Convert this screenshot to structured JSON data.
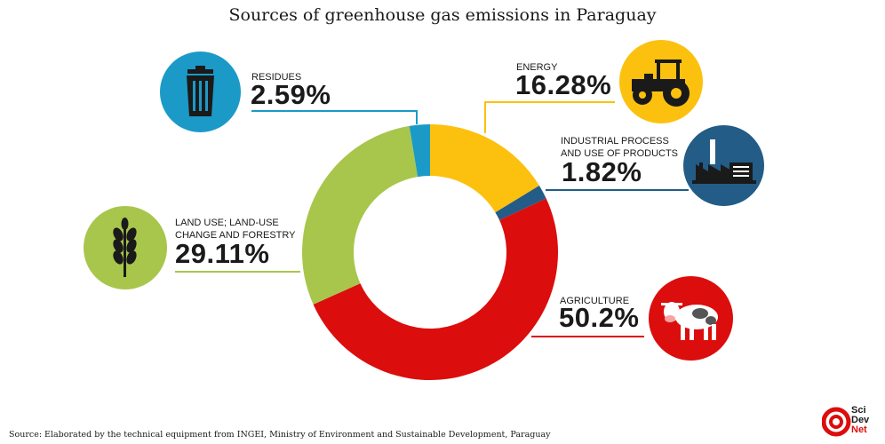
{
  "chart_data": {
    "type": "pie",
    "title": "Sources of greenhouse gas emissions in Paraguay",
    "slices": [
      {
        "name": "ENERGY",
        "value": 16.28,
        "display": "16.28%",
        "color": "#fcc10e",
        "icon": "tractor-icon"
      },
      {
        "name": "INDUSTRIAL PROCESS AND USE OF PRODUCTS",
        "value": 1.82,
        "display": "1.82%",
        "color": "#235c86",
        "icon": "factory-icon"
      },
      {
        "name": "AGRICULTURE",
        "value": 50.2,
        "display": "50.2%",
        "color": "#dc0d0d",
        "icon": "cow-icon"
      },
      {
        "name": "LAND USE; LAND-USE CHANGE AND FORESTRY",
        "value": 29.11,
        "display": "29.11%",
        "color": "#a8c64b",
        "icon": "wheat-icon"
      },
      {
        "name": "RESIDUES",
        "value": 2.59,
        "display": "2.59%",
        "color": "#1b9ac8",
        "icon": "trash-can-icon"
      }
    ]
  },
  "labels": {
    "energy": [
      "ENERGY"
    ],
    "industrial": [
      "INDUSTRIAL PROCESS",
      "AND USE OF PRODUCTS"
    ],
    "agriculture": [
      "AGRICULTURE"
    ],
    "land": [
      "LAND USE; LAND-USE",
      "CHANGE AND FORESTRY"
    ],
    "residues": [
      "RESIDUES"
    ]
  },
  "source": "Source: Elaborated by the technical equipment from INGEI, Ministry of Environment and Sustainable Development, Paraguay",
  "logo": {
    "lines": [
      "Sci",
      "Dev",
      "Net"
    ],
    "color": "#dc0d0d",
    "icon": "scidevnet-logo-icon"
  }
}
